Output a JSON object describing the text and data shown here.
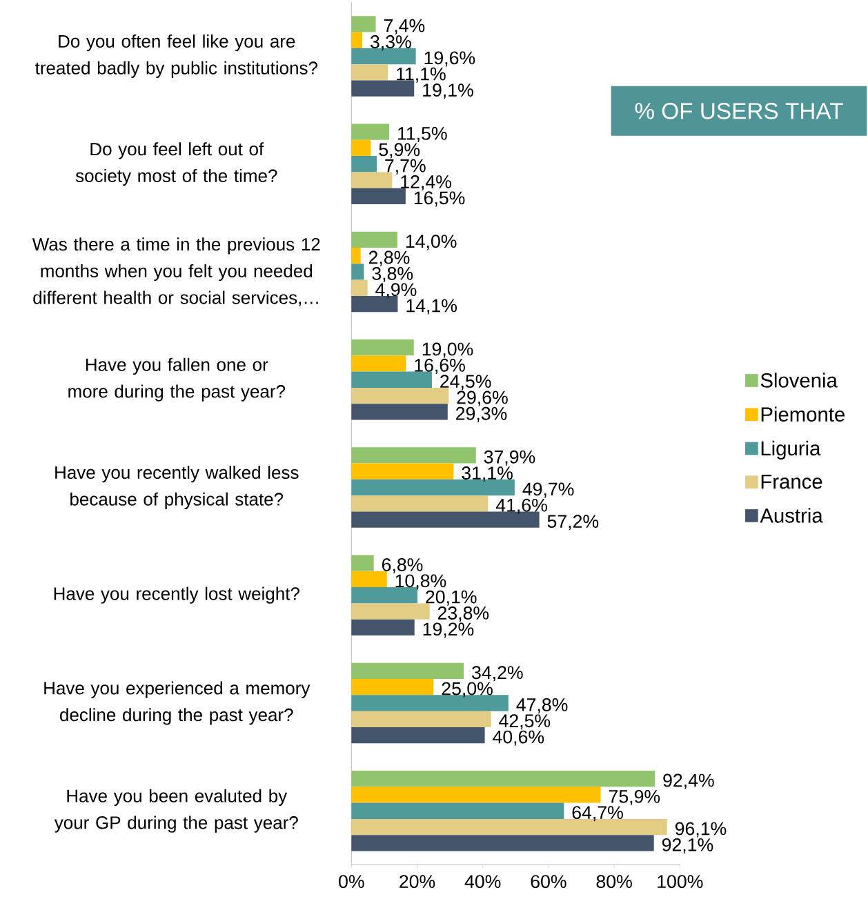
{
  "chart_data": {
    "type": "bar",
    "orientation": "horizontal",
    "title": "% OF USERS THAT",
    "categories": [
      "Do you often feel like you are treated badly by public institutions?",
      "Do you feel left out of society most of the time?",
      "Was there a time in the previous 12 months when you felt you needed different health or social services,…",
      "Have you fallen one or more during the past year?",
      "Have you recently walked less because of physical state?",
      "Have you recently lost weight?",
      "Have you experienced a memory decline during the past year?",
      "Have you been evaluted by your GP during the past year?"
    ],
    "series": [
      {
        "name": "Slovenia",
        "color": "#92c46d",
        "values": [
          7.4,
          11.5,
          14.0,
          19.0,
          37.9,
          6.8,
          34.2,
          92.4
        ],
        "value_labels": [
          "7,4%",
          "11,5%",
          "14,0%",
          "19,0%",
          "37,9%",
          "6,8%",
          "34,2%",
          "92,4%"
        ]
      },
      {
        "name": "Piemonte",
        "color": "#ffc000",
        "values": [
          3.3,
          5.9,
          2.8,
          16.6,
          31.1,
          10.8,
          25.0,
          75.9
        ],
        "value_labels": [
          "3,3%",
          "5,9%",
          "2,8%",
          "16,6%",
          "31,1%",
          "10,8%",
          "25,0%",
          "75,9%"
        ]
      },
      {
        "name": "Liguria",
        "color": "#4f9a9a",
        "values": [
          19.6,
          7.7,
          3.8,
          24.5,
          49.7,
          20.1,
          47.8,
          64.7
        ],
        "value_labels": [
          "19,6%",
          "7,7%",
          "3,8%",
          "24,5%",
          "49,7%",
          "20,1%",
          "47,8%",
          "64,7%"
        ]
      },
      {
        "name": "France",
        "color": "#e3cc83",
        "values": [
          11.1,
          12.4,
          4.9,
          29.6,
          41.6,
          23.8,
          42.5,
          96.1
        ],
        "value_labels": [
          "11,1%",
          "12,4%",
          "4,9%",
          "29,6%",
          "41,6%",
          "23,8%",
          "42,5%",
          "96,1%"
        ]
      },
      {
        "name": "Austria",
        "color": "#44546a",
        "values": [
          19.1,
          16.5,
          14.1,
          29.3,
          57.2,
          19.2,
          40.6,
          92.1
        ],
        "value_labels": [
          "19,1%",
          "16,5%",
          "14,1%",
          "29,3%",
          "57,2%",
          "19,2%",
          "40,6%",
          "92,1%"
        ]
      }
    ],
    "xlim": [
      0,
      100
    ],
    "xticks": [
      {
        "value": 0,
        "label": "0%"
      },
      {
        "value": 20,
        "label": "20%"
      },
      {
        "value": 40,
        "label": "40%"
      },
      {
        "value": 60,
        "label": "60%"
      },
      {
        "value": 80,
        "label": "80%"
      },
      {
        "value": 100,
        "label": "100%"
      }
    ],
    "legend": "right"
  }
}
